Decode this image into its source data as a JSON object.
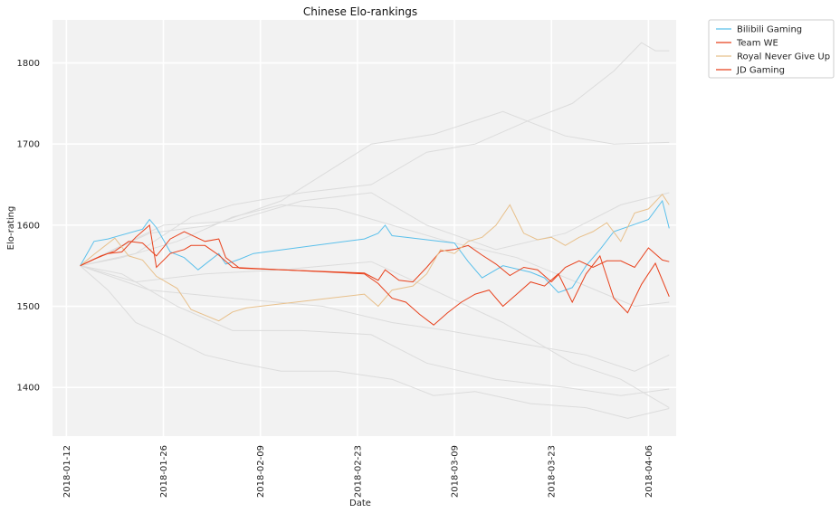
{
  "chart_data": {
    "type": "line",
    "title": "Chinese Elo-rankings",
    "xlabel": "Date",
    "ylabel": "Elo-rating",
    "xlim": [
      "2018-01-10",
      "2018-04-10"
    ],
    "ylim": [
      1340,
      1853
    ],
    "xticks": [
      "2018-01-12",
      "2018-01-26",
      "2018-02-09",
      "2018-02-23",
      "2018-03-09",
      "2018-03-23",
      "2018-04-06"
    ],
    "yticks": [
      1400,
      1500,
      1600,
      1700,
      1800
    ],
    "grid": true,
    "legend_placement": "outside-top-right",
    "highlighted_series": [
      {
        "name": "Bilibili Gaming",
        "color": "#5bc0eb",
        "points": [
          [
            "2018-01-14",
            1550
          ],
          [
            "2018-01-16",
            1580
          ],
          [
            "2018-01-18",
            1583
          ],
          [
            "2018-01-23",
            1595
          ],
          [
            "2018-01-24",
            1607
          ],
          [
            "2018-01-25",
            1597
          ],
          [
            "2018-01-27",
            1567
          ],
          [
            "2018-01-29",
            1560
          ],
          [
            "2018-01-31",
            1545
          ],
          [
            "2018-02-03",
            1565
          ],
          [
            "2018-02-04",
            1552
          ],
          [
            "2018-02-06",
            1558
          ],
          [
            "2018-02-08",
            1565
          ],
          [
            "2018-02-24",
            1583
          ],
          [
            "2018-02-26",
            1590
          ],
          [
            "2018-02-27",
            1600
          ],
          [
            "2018-02-28",
            1587
          ],
          [
            "2018-03-02",
            1585
          ],
          [
            "2018-03-09",
            1578
          ],
          [
            "2018-03-11",
            1555
          ],
          [
            "2018-03-13",
            1535
          ],
          [
            "2018-03-16",
            1550
          ],
          [
            "2018-03-20",
            1542
          ],
          [
            "2018-03-22",
            1535
          ],
          [
            "2018-03-24",
            1517
          ],
          [
            "2018-03-26",
            1523
          ],
          [
            "2018-03-28",
            1550
          ],
          [
            "2018-03-30",
            1570
          ],
          [
            "2018-04-01",
            1592
          ],
          [
            "2018-04-03",
            1598
          ],
          [
            "2018-04-06",
            1607
          ],
          [
            "2018-04-08",
            1630
          ],
          [
            "2018-04-09",
            1596
          ]
        ]
      },
      {
        "name": "Team WE",
        "color": "#e8411c",
        "points": [
          [
            "2018-01-14",
            1550
          ],
          [
            "2018-01-17",
            1562
          ],
          [
            "2018-01-19",
            1568
          ],
          [
            "2018-01-21",
            1580
          ],
          [
            "2018-01-23",
            1578
          ],
          [
            "2018-01-25",
            1562
          ],
          [
            "2018-01-27",
            1583
          ],
          [
            "2018-01-29",
            1592
          ],
          [
            "2018-02-01",
            1580
          ],
          [
            "2018-02-03",
            1583
          ],
          [
            "2018-02-04",
            1560
          ],
          [
            "2018-02-06",
            1547
          ],
          [
            "2018-02-24",
            1541
          ],
          [
            "2018-02-26",
            1532
          ],
          [
            "2018-02-27",
            1545
          ],
          [
            "2018-03-01",
            1532
          ],
          [
            "2018-03-03",
            1530
          ],
          [
            "2018-03-05",
            1548
          ],
          [
            "2018-03-07",
            1568
          ],
          [
            "2018-03-09",
            1570
          ],
          [
            "2018-03-11",
            1575
          ],
          [
            "2018-03-13",
            1563
          ],
          [
            "2018-03-15",
            1552
          ],
          [
            "2018-03-17",
            1538
          ],
          [
            "2018-03-19",
            1548
          ],
          [
            "2018-03-21",
            1545
          ],
          [
            "2018-03-23",
            1530
          ],
          [
            "2018-03-25",
            1548
          ],
          [
            "2018-03-27",
            1556
          ],
          [
            "2018-03-29",
            1548
          ],
          [
            "2018-03-31",
            1556
          ],
          [
            "2018-04-02",
            1556
          ],
          [
            "2018-04-04",
            1548
          ],
          [
            "2018-04-06",
            1572
          ],
          [
            "2018-04-08",
            1557
          ],
          [
            "2018-04-09",
            1555
          ]
        ]
      },
      {
        "name": "Royal Never Give Up",
        "color": "#e8c08b",
        "points": [
          [
            "2018-01-14",
            1550
          ],
          [
            "2018-01-16",
            1564
          ],
          [
            "2018-01-19",
            1584
          ],
          [
            "2018-01-21",
            1562
          ],
          [
            "2018-01-23",
            1557
          ],
          [
            "2018-01-25",
            1537
          ],
          [
            "2018-01-28",
            1522
          ],
          [
            "2018-01-30",
            1496
          ],
          [
            "2018-02-03",
            1482
          ],
          [
            "2018-02-05",
            1493
          ],
          [
            "2018-02-07",
            1498
          ],
          [
            "2018-02-24",
            1515
          ],
          [
            "2018-02-26",
            1500
          ],
          [
            "2018-02-28",
            1520
          ],
          [
            "2018-03-03",
            1525
          ],
          [
            "2018-03-05",
            1540
          ],
          [
            "2018-03-07",
            1570
          ],
          [
            "2018-03-09",
            1565
          ],
          [
            "2018-03-11",
            1580
          ],
          [
            "2018-03-13",
            1585
          ],
          [
            "2018-03-15",
            1600
          ],
          [
            "2018-03-17",
            1625
          ],
          [
            "2018-03-19",
            1590
          ],
          [
            "2018-03-21",
            1582
          ],
          [
            "2018-03-23",
            1585
          ],
          [
            "2018-03-25",
            1575
          ],
          [
            "2018-03-27",
            1585
          ],
          [
            "2018-03-29",
            1592
          ],
          [
            "2018-03-31",
            1603
          ],
          [
            "2018-04-02",
            1580
          ],
          [
            "2018-04-04",
            1615
          ],
          [
            "2018-04-06",
            1620
          ],
          [
            "2018-04-08",
            1638
          ],
          [
            "2018-04-09",
            1625
          ]
        ]
      },
      {
        "name": "JD Gaming",
        "color": "#e8411c",
        "points": [
          [
            "2018-01-14",
            1550
          ],
          [
            "2018-01-16",
            1558
          ],
          [
            "2018-01-18",
            1565
          ],
          [
            "2018-01-20",
            1567
          ],
          [
            "2018-01-22",
            1585
          ],
          [
            "2018-01-24",
            1600
          ],
          [
            "2018-01-25",
            1548
          ],
          [
            "2018-01-27",
            1565
          ],
          [
            "2018-01-29",
            1570
          ],
          [
            "2018-01-30",
            1575
          ],
          [
            "2018-02-01",
            1575
          ],
          [
            "2018-02-03",
            1563
          ],
          [
            "2018-02-05",
            1548
          ],
          [
            "2018-02-24",
            1540
          ],
          [
            "2018-02-26",
            1528
          ],
          [
            "2018-02-28",
            1510
          ],
          [
            "2018-03-02",
            1505
          ],
          [
            "2018-03-04",
            1490
          ],
          [
            "2018-03-06",
            1477
          ],
          [
            "2018-03-08",
            1492
          ],
          [
            "2018-03-10",
            1505
          ],
          [
            "2018-03-12",
            1515
          ],
          [
            "2018-03-14",
            1520
          ],
          [
            "2018-03-16",
            1500
          ],
          [
            "2018-03-18",
            1515
          ],
          [
            "2018-03-20",
            1530
          ],
          [
            "2018-03-22",
            1525
          ],
          [
            "2018-03-24",
            1540
          ],
          [
            "2018-03-26",
            1505
          ],
          [
            "2018-03-28",
            1540
          ],
          [
            "2018-03-30",
            1562
          ],
          [
            "2018-04-01",
            1510
          ],
          [
            "2018-04-03",
            1492
          ],
          [
            "2018-04-05",
            1527
          ],
          [
            "2018-04-07",
            1553
          ],
          [
            "2018-04-09",
            1512
          ]
        ]
      }
    ],
    "background_series_color": "#dcdcdc",
    "background_series": [
      [
        [
          "2018-01-14",
          1550
        ],
        [
          "2018-01-18",
          1520
        ],
        [
          "2018-01-22",
          1480
        ],
        [
          "2018-01-26",
          1465
        ],
        [
          "2018-02-01",
          1440
        ],
        [
          "2018-02-06",
          1430
        ],
        [
          "2018-02-12",
          1420
        ],
        [
          "2018-02-20",
          1420
        ],
        [
          "2018-02-28",
          1410
        ],
        [
          "2018-03-06",
          1390
        ],
        [
          "2018-03-12",
          1395
        ],
        [
          "2018-03-20",
          1380
        ],
        [
          "2018-03-28",
          1375
        ],
        [
          "2018-04-03",
          1362
        ],
        [
          "2018-04-09",
          1374
        ]
      ],
      [
        [
          "2018-01-14",
          1550
        ],
        [
          "2018-01-20",
          1540
        ],
        [
          "2018-01-28",
          1500
        ],
        [
          "2018-02-05",
          1470
        ],
        [
          "2018-02-15",
          1470
        ],
        [
          "2018-02-25",
          1465
        ],
        [
          "2018-03-05",
          1430
        ],
        [
          "2018-03-15",
          1410
        ],
        [
          "2018-03-25",
          1400
        ],
        [
          "2018-04-02",
          1390
        ],
        [
          "2018-04-09",
          1398
        ]
      ],
      [
        [
          "2018-01-14",
          1550
        ],
        [
          "2018-01-22",
          1565
        ],
        [
          "2018-01-30",
          1610
        ],
        [
          "2018-02-05",
          1625
        ],
        [
          "2018-02-15",
          1640
        ],
        [
          "2018-02-25",
          1650
        ],
        [
          "2018-03-05",
          1690
        ],
        [
          "2018-03-12",
          1700
        ],
        [
          "2018-03-20",
          1730
        ],
        [
          "2018-03-26",
          1750
        ],
        [
          "2018-04-01",
          1790
        ],
        [
          "2018-04-05",
          1825
        ],
        [
          "2018-04-07",
          1815
        ],
        [
          "2018-04-09",
          1815
        ]
      ],
      [
        [
          "2018-01-14",
          1550
        ],
        [
          "2018-01-24",
          1590
        ],
        [
          "2018-02-02",
          1600
        ],
        [
          "2018-02-12",
          1630
        ],
        [
          "2018-02-25",
          1700
        ],
        [
          "2018-03-06",
          1712
        ],
        [
          "2018-03-16",
          1740
        ],
        [
          "2018-03-25",
          1710
        ],
        [
          "2018-04-01",
          1700
        ],
        [
          "2018-04-09",
          1702
        ]
      ],
      [
        [
          "2018-01-14",
          1550
        ],
        [
          "2018-01-26",
          1600
        ],
        [
          "2018-02-05",
          1605
        ],
        [
          "2018-02-15",
          1630
        ],
        [
          "2018-02-25",
          1640
        ],
        [
          "2018-03-05",
          1600
        ],
        [
          "2018-03-15",
          1570
        ],
        [
          "2018-03-25",
          1590
        ],
        [
          "2018-04-02",
          1625
        ],
        [
          "2018-04-09",
          1640
        ]
      ],
      [
        [
          "2018-01-14",
          1550
        ],
        [
          "2018-01-22",
          1530
        ],
        [
          "2018-02-01",
          1540
        ],
        [
          "2018-02-12",
          1545
        ],
        [
          "2018-02-25",
          1555
        ],
        [
          "2018-03-06",
          1520
        ],
        [
          "2018-03-16",
          1480
        ],
        [
          "2018-03-26",
          1430
        ],
        [
          "2018-04-02",
          1410
        ],
        [
          "2018-04-09",
          1375
        ]
      ],
      [
        [
          "2018-01-14",
          1550
        ],
        [
          "2018-01-24",
          1520
        ],
        [
          "2018-02-05",
          1510
        ],
        [
          "2018-02-18",
          1500
        ],
        [
          "2018-02-28",
          1480
        ],
        [
          "2018-03-08",
          1470
        ],
        [
          "2018-03-18",
          1455
        ],
        [
          "2018-03-28",
          1440
        ],
        [
          "2018-04-04",
          1420
        ],
        [
          "2018-04-09",
          1440
        ]
      ],
      [
        [
          "2018-01-14",
          1550
        ],
        [
          "2018-01-20",
          1560
        ],
        [
          "2018-01-28",
          1580
        ],
        [
          "2018-02-05",
          1610
        ],
        [
          "2018-02-12",
          1625
        ],
        [
          "2018-02-20",
          1620
        ],
        [
          "2018-02-28",
          1600
        ],
        [
          "2018-03-08",
          1580
        ],
        [
          "2018-03-18",
          1560
        ],
        [
          "2018-03-28",
          1525
        ],
        [
          "2018-04-04",
          1500
        ],
        [
          "2018-04-09",
          1505
        ]
      ]
    ]
  },
  "legend": {
    "items": [
      {
        "label": "Bilibili Gaming",
        "color": "#5bc0eb"
      },
      {
        "label": "Team WE",
        "color": "#e8411c"
      },
      {
        "label": "Royal Never Give Up",
        "color": "#e8c08b"
      },
      {
        "label": "JD Gaming",
        "color": "#e8411c"
      }
    ]
  },
  "colors": {
    "plot_background": "#f2f2f2",
    "grid": "#ffffff"
  }
}
